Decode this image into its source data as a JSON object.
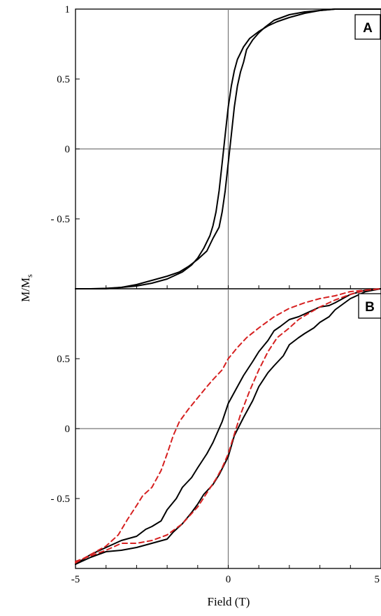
{
  "chart_data": [
    {
      "type": "line",
      "panel_label": "A",
      "xlim": [
        -5,
        5
      ],
      "ylim": [
        -1,
        1
      ],
      "y_ticks": [
        {
          "value": 1,
          "label": "1"
        },
        {
          "value": 0.5,
          "label": "0.5"
        },
        {
          "value": 0,
          "label": "0"
        },
        {
          "value": -0.5,
          "label": "- 0.5"
        }
      ],
      "grid": false,
      "zero_lines": true,
      "series": [
        {
          "color": "#000000",
          "dash": "solid",
          "x": [
            -5,
            -4.5,
            -4,
            -3.5,
            -3,
            -2.5,
            -2,
            -1.5,
            -1.2,
            -1,
            -0.8,
            -0.6,
            -0.5,
            -0.4,
            -0.3,
            -0.2,
            -0.1,
            0,
            0.1,
            0.2,
            0.3,
            0.5,
            0.7,
            1,
            1.3,
            1.6,
            2,
            2.5,
            3,
            3.5,
            4,
            4.5,
            5
          ],
          "y": [
            -1,
            -1,
            -0.997,
            -0.99,
            -0.98,
            -0.96,
            -0.93,
            -0.88,
            -0.83,
            -0.78,
            -0.71,
            -0.62,
            -0.55,
            -0.45,
            -0.3,
            -0.1,
            0.1,
            0.3,
            0.45,
            0.56,
            0.64,
            0.73,
            0.79,
            0.84,
            0.88,
            0.91,
            0.94,
            0.97,
            0.99,
            1,
            1,
            1,
            1
          ]
        },
        {
          "color": "#000000",
          "dash": "solid",
          "x": [
            -5,
            -4.5,
            -4,
            -3.5,
            -3,
            -2.5,
            -2,
            -1.6,
            -1.3,
            -1,
            -0.7,
            -0.5,
            -0.3,
            -0.2,
            -0.1,
            0,
            0.1,
            0.2,
            0.3,
            0.4,
            0.5,
            0.6,
            0.8,
            1,
            1.2,
            1.5,
            2,
            2.5,
            3,
            3.5,
            4,
            4.5,
            5
          ],
          "y": [
            -1,
            -1,
            -1,
            -0.99,
            -0.97,
            -0.94,
            -0.91,
            -0.88,
            -0.84,
            -0.79,
            -0.73,
            -0.64,
            -0.56,
            -0.45,
            -0.3,
            -0.1,
            0.1,
            0.3,
            0.45,
            0.55,
            0.62,
            0.71,
            0.78,
            0.83,
            0.87,
            0.92,
            0.96,
            0.98,
            0.99,
            1,
            1,
            1,
            1
          ]
        }
      ]
    },
    {
      "type": "line",
      "panel_label": "B",
      "xlim": [
        -5,
        5
      ],
      "ylim": [
        -1,
        1
      ],
      "x_ticks": [
        {
          "value": -5,
          "label": "-5"
        },
        {
          "value": 0,
          "label": "0"
        },
        {
          "value": 5,
          "label": "5"
        }
      ],
      "y_ticks": [
        {
          "value": 0.5,
          "label": "0.5"
        },
        {
          "value": 0,
          "label": "0"
        },
        {
          "value": -0.5,
          "label": "- 0.5"
        }
      ],
      "grid": false,
      "zero_lines": true,
      "series": [
        {
          "color": "#000000",
          "dash": "solid",
          "x": [
            -5,
            -4.5,
            -4,
            -3.5,
            -3,
            -2.7,
            -2.5,
            -2.2,
            -2,
            -1.7,
            -1.5,
            -1.2,
            -1,
            -0.7,
            -0.5,
            -0.2,
            0,
            0.3,
            0.5,
            0.8,
            1,
            1.3,
            1.5,
            1.7,
            2,
            2.3,
            2.5,
            2.8,
            3,
            3.3,
            3.5,
            4,
            4.5,
            5
          ],
          "y": [
            -0.97,
            -0.9,
            -0.85,
            -0.8,
            -0.77,
            -0.72,
            -0.7,
            -0.66,
            -0.58,
            -0.5,
            -0.42,
            -0.35,
            -0.28,
            -0.18,
            -0.1,
            0.05,
            0.18,
            0.3,
            0.38,
            0.48,
            0.55,
            0.63,
            0.7,
            0.73,
            0.78,
            0.8,
            0.82,
            0.85,
            0.87,
            0.88,
            0.9,
            0.96,
            0.99,
            1
          ]
        },
        {
          "color": "#000000",
          "dash": "solid",
          "x": [
            -5,
            -4.5,
            -4,
            -3.5,
            -3,
            -2.5,
            -2,
            -1.8,
            -1.5,
            -1.2,
            -1,
            -0.8,
            -0.5,
            -0.3,
            0,
            0.2,
            0.5,
            0.8,
            1,
            1.3,
            1.5,
            1.8,
            2,
            2.3,
            2.5,
            2.8,
            3,
            3.3,
            3.5,
            4,
            4.5,
            5
          ],
          "y": [
            -0.97,
            -0.92,
            -0.88,
            -0.87,
            -0.85,
            -0.82,
            -0.79,
            -0.74,
            -0.68,
            -0.6,
            -0.54,
            -0.47,
            -0.4,
            -0.33,
            -0.2,
            -0.05,
            0.08,
            0.2,
            0.3,
            0.4,
            0.45,
            0.52,
            0.6,
            0.65,
            0.68,
            0.72,
            0.76,
            0.8,
            0.85,
            0.93,
            0.98,
            1
          ]
        },
        {
          "color": "#d62020",
          "dash": "dashed",
          "x": [
            -5,
            -4.5,
            -4,
            -3.6,
            -3.3,
            -3,
            -2.8,
            -2.5,
            -2.2,
            -2,
            -1.8,
            -1.6,
            -1.3,
            -1,
            -0.7,
            -0.5,
            -0.2,
            0,
            0.3,
            0.6,
            1,
            1.5,
            2,
            2.5,
            3,
            3.5,
            4,
            4.5,
            5
          ],
          "y": [
            -0.96,
            -0.9,
            -0.84,
            -0.76,
            -0.65,
            -0.55,
            -0.48,
            -0.42,
            -0.3,
            -0.18,
            -0.05,
            0.05,
            0.14,
            0.22,
            0.3,
            0.35,
            0.42,
            0.5,
            0.58,
            0.65,
            0.72,
            0.8,
            0.86,
            0.9,
            0.93,
            0.95,
            0.98,
            0.99,
            1
          ]
        },
        {
          "color": "#d62020",
          "dash": "dashed",
          "x": [
            -5,
            -4.5,
            -4,
            -3.5,
            -3,
            -2.5,
            -2,
            -1.5,
            -1,
            -0.7,
            -0.4,
            -0.2,
            0,
            0.2,
            0.4,
            0.7,
            1,
            1.3,
            1.6,
            2,
            2.3,
            2.6,
            3,
            3.5,
            4,
            4.5,
            5
          ],
          "y": [
            -0.95,
            -0.91,
            -0.87,
            -0.82,
            -0.82,
            -0.8,
            -0.76,
            -0.68,
            -0.56,
            -0.46,
            -0.36,
            -0.28,
            -0.18,
            -0.04,
            0.1,
            0.27,
            0.42,
            0.55,
            0.65,
            0.72,
            0.78,
            0.82,
            0.87,
            0.92,
            0.96,
            0.99,
            1
          ]
        }
      ]
    }
  ],
  "shared_axes": {
    "ylabel_main": "M/M",
    "ylabel_sub": "s",
    "xlabel": "Field (T)"
  }
}
